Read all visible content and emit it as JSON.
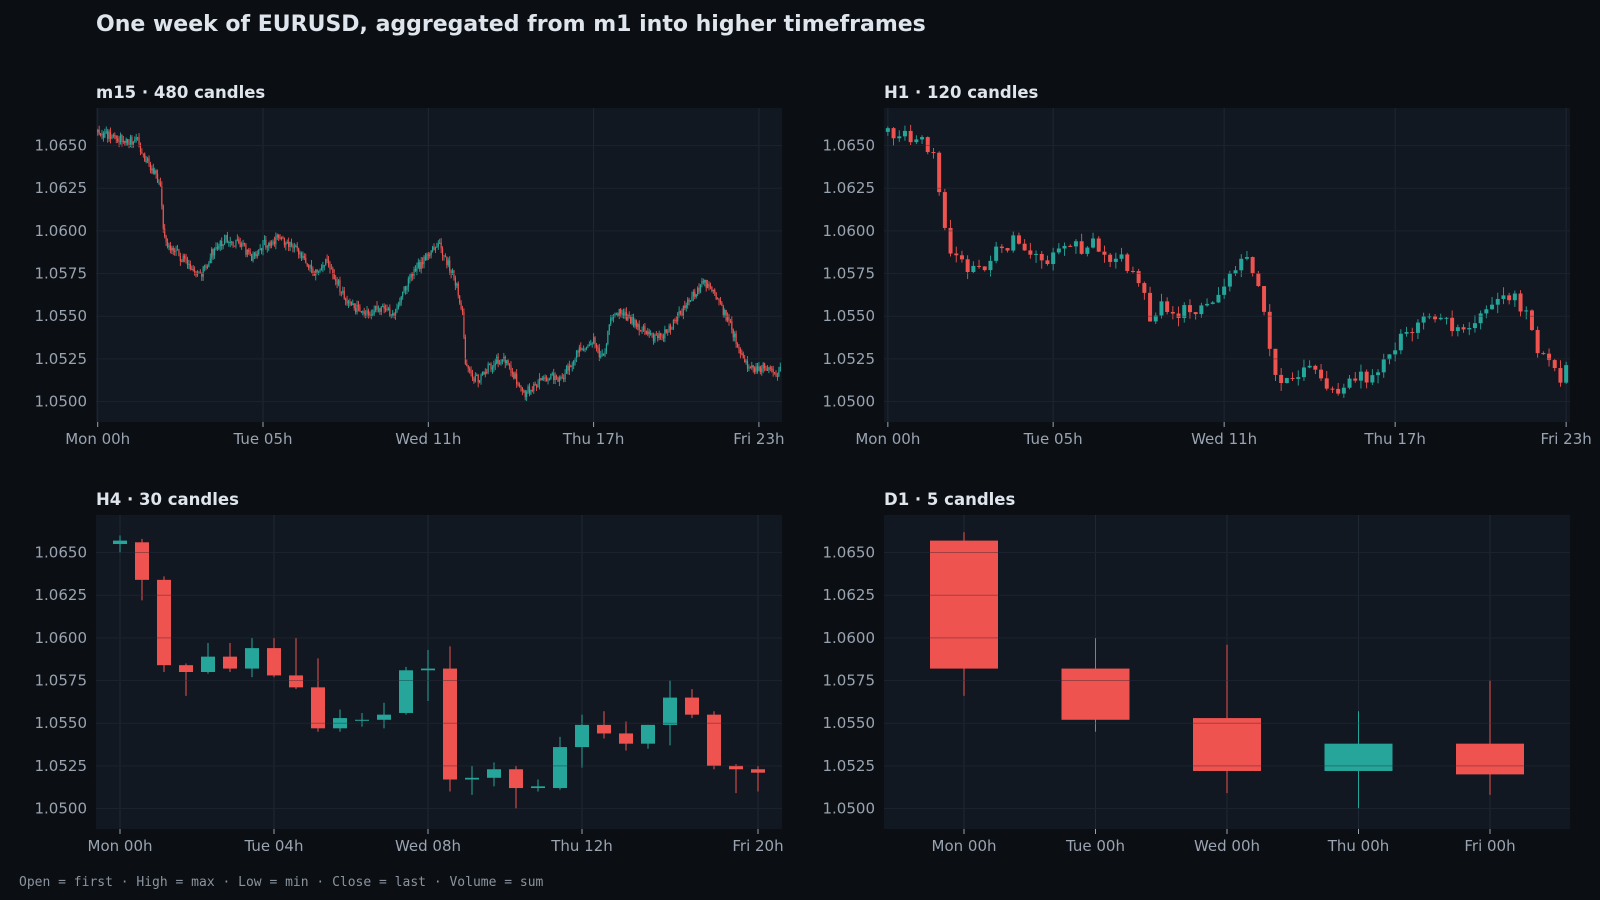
{
  "title": "One week of EURUSD, aggregated from m1 into higher timeframes",
  "footer": "Open = first · High = max · Low = min · Close = last · Volume = sum",
  "colors": {
    "up": "#26a69a",
    "down": "#ef5350",
    "panel_bg": "#121821",
    "grid": "#1f2733",
    "page_bg": "#0b0e13"
  },
  "chart_data": [
    {
      "type": "candlestick",
      "title": "m15 · 480 candles",
      "yticks": [
        1.05,
        1.0525,
        1.055,
        1.0575,
        1.06,
        1.0625,
        1.065
      ],
      "xticks": [
        "Mon 00h",
        "Tue 05h",
        "Wed 11h",
        "Thu 17h",
        "Fri 23h"
      ],
      "xtick_index": [
        0,
        116,
        232,
        348,
        464
      ],
      "grid": true,
      "ylim": [
        1.0488,
        1.0672
      ],
      "count": 480,
      "anchors": [
        [
          0,
          1.0658
        ],
        [
          12,
          1.0655
        ],
        [
          28,
          1.0652
        ],
        [
          36,
          1.0638
        ],
        [
          44,
          1.0628
        ],
        [
          46,
          1.06
        ],
        [
          50,
          1.059
        ],
        [
          58,
          1.0585
        ],
        [
          66,
          1.0577
        ],
        [
          72,
          1.0573
        ],
        [
          80,
          1.0587
        ],
        [
          90,
          1.0595
        ],
        [
          100,
          1.0592
        ],
        [
          108,
          1.0585
        ],
        [
          116,
          1.0592
        ],
        [
          126,
          1.0595
        ],
        [
          134,
          1.0592
        ],
        [
          144,
          1.0585
        ],
        [
          152,
          1.0575
        ],
        [
          160,
          1.0583
        ],
        [
          168,
          1.057
        ],
        [
          176,
          1.0557
        ],
        [
          184,
          1.0553
        ],
        [
          194,
          1.0553
        ],
        [
          202,
          1.0557
        ],
        [
          208,
          1.0548
        ],
        [
          214,
          1.0565
        ],
        [
          222,
          1.0575
        ],
        [
          232,
          1.0588
        ],
        [
          240,
          1.0592
        ],
        [
          246,
          1.058
        ],
        [
          250,
          1.0573
        ],
        [
          254,
          1.056
        ],
        [
          256,
          1.055
        ],
        [
          258,
          1.0522
        ],
        [
          262,
          1.0515
        ],
        [
          268,
          1.0512
        ],
        [
          274,
          1.052
        ],
        [
          282,
          1.0525
        ],
        [
          288,
          1.0522
        ],
        [
          294,
          1.0512
        ],
        [
          300,
          1.0505
        ],
        [
          308,
          1.051
        ],
        [
          318,
          1.0515
        ],
        [
          324,
          1.0512
        ],
        [
          332,
          1.0522
        ],
        [
          340,
          1.0532
        ],
        [
          348,
          1.0535
        ],
        [
          352,
          1.0528
        ],
        [
          356,
          1.053
        ],
        [
          360,
          1.055
        ],
        [
          366,
          1.0552
        ],
        [
          374,
          1.0548
        ],
        [
          382,
          1.0543
        ],
        [
          390,
          1.0538
        ],
        [
          398,
          1.054
        ],
        [
          406,
          1.0548
        ],
        [
          414,
          1.0558
        ],
        [
          420,
          1.0565
        ],
        [
          426,
          1.057
        ],
        [
          432,
          1.0565
        ],
        [
          438,
          1.0555
        ],
        [
          444,
          1.0545
        ],
        [
          450,
          1.053
        ],
        [
          456,
          1.0522
        ],
        [
          462,
          1.0518
        ],
        [
          468,
          1.0522
        ],
        [
          474,
          1.0515
        ],
        [
          479,
          1.0518
        ]
      ],
      "noise": 0.00055
    },
    {
      "type": "candlestick",
      "title": "H1 · 120 candles",
      "yticks": [
        1.05,
        1.0525,
        1.055,
        1.0575,
        1.06,
        1.0625,
        1.065
      ],
      "xticks": [
        "Mon 00h",
        "Tue 05h",
        "Wed 11h",
        "Thu 17h",
        "Fri 23h"
      ],
      "xtick_index": [
        0,
        29,
        59,
        89,
        119
      ],
      "grid": true,
      "ylim": [
        1.0488,
        1.0672
      ],
      "count": 120,
      "anchors": [
        [
          0,
          1.0658
        ],
        [
          3,
          1.0655
        ],
        [
          6,
          1.0652
        ],
        [
          8,
          1.0642
        ],
        [
          9,
          1.0625
        ],
        [
          10,
          1.06
        ],
        [
          11,
          1.0588
        ],
        [
          13,
          1.0582
        ],
        [
          15,
          1.0575
        ],
        [
          17,
          1.0578
        ],
        [
          19,
          1.059
        ],
        [
          22,
          1.0593
        ],
        [
          25,
          1.059
        ],
        [
          28,
          1.0585
        ],
        [
          30,
          1.0592
        ],
        [
          33,
          1.059
        ],
        [
          36,
          1.0592
        ],
        [
          38,
          1.0588
        ],
        [
          39,
          1.0578
        ],
        [
          41,
          1.0583
        ],
        [
          43,
          1.0572
        ],
        [
          45,
          1.056
        ],
        [
          46,
          1.055
        ],
        [
          48,
          1.0555
        ],
        [
          51,
          1.0553
        ],
        [
          54,
          1.0555
        ],
        [
          56,
          1.0553
        ],
        [
          58,
          1.0565
        ],
        [
          60,
          1.0575
        ],
        [
          62,
          1.0583
        ],
        [
          63,
          1.0588
        ],
        [
          64,
          1.0578
        ],
        [
          65,
          1.0567
        ],
        [
          66,
          1.055
        ],
        [
          67,
          1.053
        ],
        [
          68,
          1.0512
        ],
        [
          71,
          1.0515
        ],
        [
          74,
          1.052
        ],
        [
          76,
          1.0512
        ],
        [
          78,
          1.0505
        ],
        [
          80,
          1.051
        ],
        [
          82,
          1.0513
        ],
        [
          84,
          1.0515
        ],
        [
          86,
          1.052
        ],
        [
          88,
          1.053
        ],
        [
          91,
          1.054
        ],
        [
          93,
          1.0548
        ],
        [
          96,
          1.055
        ],
        [
          98,
          1.0545
        ],
        [
          100,
          1.054
        ],
        [
          102,
          1.0543
        ],
        [
          104,
          1.0548
        ],
        [
          106,
          1.0555
        ],
        [
          108,
          1.056
        ],
        [
          110,
          1.0562
        ],
        [
          112,
          1.055
        ],
        [
          114,
          1.0532
        ],
        [
          116,
          1.052
        ],
        [
          118,
          1.0513
        ],
        [
          119,
          1.0518
        ]
      ],
      "noise": 0.0009
    },
    {
      "type": "candlestick",
      "title": "H4 · 30 candles",
      "yticks": [
        1.05,
        1.0525,
        1.055,
        1.0575,
        1.06,
        1.0625,
        1.065
      ],
      "xticks": [
        "Mon 00h",
        "Tue 04h",
        "Wed 08h",
        "Thu 12h",
        "Fri 20h"
      ],
      "xtick_index": [
        0,
        7,
        14,
        21,
        29
      ],
      "grid": true,
      "ylim": [
        1.0488,
        1.0672
      ],
      "ohlc": [
        [
          1.0655,
          1.066,
          1.065,
          1.0657
        ],
        [
          1.0656,
          1.0658,
          1.0622,
          1.0634
        ],
        [
          1.0634,
          1.0636,
          1.058,
          1.0584
        ],
        [
          1.0584,
          1.0585,
          1.0566,
          1.058
        ],
        [
          1.058,
          1.0597,
          1.0579,
          1.0589
        ],
        [
          1.0589,
          1.0597,
          1.058,
          1.0582
        ],
        [
          1.0582,
          1.06,
          1.0577,
          1.0594
        ],
        [
          1.0594,
          1.06,
          1.0577,
          1.0578
        ],
        [
          1.0578,
          1.06,
          1.057,
          1.0571
        ],
        [
          1.0571,
          1.0588,
          1.0545,
          1.0547
        ],
        [
          1.0547,
          1.0558,
          1.0545,
          1.0553
        ],
        [
          1.0552,
          1.0556,
          1.0548,
          1.0552
        ],
        [
          1.0552,
          1.0562,
          1.0547,
          1.0555
        ],
        [
          1.0556,
          1.0583,
          1.0555,
          1.0581
        ],
        [
          1.0581,
          1.0593,
          1.0563,
          1.0582
        ],
        [
          1.0582,
          1.0595,
          1.051,
          1.0517
        ],
        [
          1.0517,
          1.0525,
          1.0508,
          1.0518
        ],
        [
          1.0518,
          1.0527,
          1.0513,
          1.0523
        ],
        [
          1.0523,
          1.0525,
          1.05,
          1.0512
        ],
        [
          1.0512,
          1.0517,
          1.051,
          1.0513
        ],
        [
          1.0512,
          1.0542,
          1.0511,
          1.0536
        ],
        [
          1.0536,
          1.0555,
          1.0524,
          1.0549
        ],
        [
          1.0549,
          1.0557,
          1.0541,
          1.0544
        ],
        [
          1.0544,
          1.0551,
          1.0534,
          1.0538
        ],
        [
          1.0538,
          1.0549,
          1.0535,
          1.0549
        ],
        [
          1.0549,
          1.0575,
          1.0537,
          1.0565
        ],
        [
          1.0565,
          1.057,
          1.0553,
          1.0555
        ],
        [
          1.0555,
          1.0557,
          1.0523,
          1.0525
        ],
        [
          1.0525,
          1.0526,
          1.0509,
          1.0523
        ],
        [
          1.0523,
          1.0525,
          1.051,
          1.0521
        ]
      ]
    },
    {
      "type": "candlestick",
      "title": "D1 · 5 candles",
      "yticks": [
        1.05,
        1.0525,
        1.055,
        1.0575,
        1.06,
        1.0625,
        1.065
      ],
      "xticks": [
        "Mon 00h",
        "Tue 00h",
        "Wed 00h",
        "Thu 00h",
        "Fri 00h"
      ],
      "xtick_index": [
        0,
        1,
        2,
        3,
        4
      ],
      "grid": true,
      "ylim": [
        1.0488,
        1.0672
      ],
      "ohlc": [
        [
          1.0657,
          1.0662,
          1.0566,
          1.0582
        ],
        [
          1.0582,
          1.06,
          1.0545,
          1.0552
        ],
        [
          1.0553,
          1.0596,
          1.0509,
          1.0522
        ],
        [
          1.0522,
          1.0557,
          1.05,
          1.0538
        ],
        [
          1.0538,
          1.0575,
          1.0508,
          1.052
        ]
      ]
    }
  ]
}
